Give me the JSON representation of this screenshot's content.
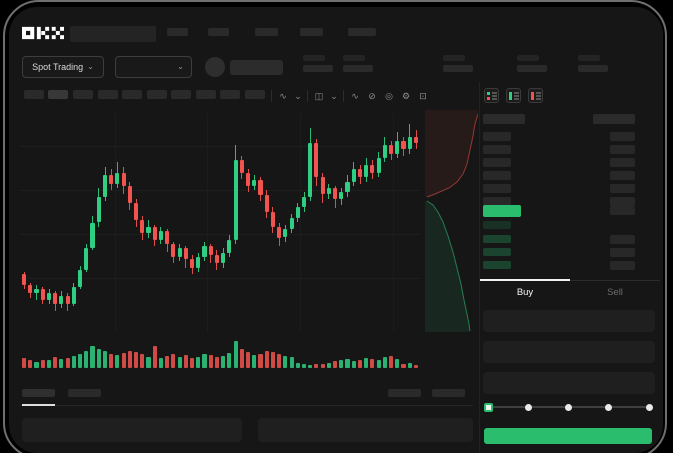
{
  "app": {
    "name": "OKX trading terminal (skeleton state)"
  },
  "colors": {
    "background": "#161616",
    "candle_up": "#2fce82",
    "candle_down": "#f1544f",
    "accent_green": "#2abd6e",
    "tab_active_underline": "#f2f2f2"
  },
  "header": {
    "logo": "OKX",
    "market_selector": {
      "label": "Spot Trading",
      "chevron": "⌄"
    },
    "pair_selector": {
      "chevron": "⌄"
    }
  },
  "chart_toolbar": {
    "icons": [
      {
        "name": "indicators",
        "glyph": "∿"
      },
      {
        "name": "indicators-caret",
        "glyph": "⌄"
      },
      {
        "name": "candle-style",
        "glyph": "◫"
      },
      {
        "name": "candle-style-caret",
        "glyph": "⌄"
      },
      {
        "name": "line-tool",
        "glyph": "∿"
      },
      {
        "name": "compare",
        "glyph": "⊘"
      },
      {
        "name": "screenshot",
        "glyph": "◎"
      },
      {
        "name": "settings",
        "glyph": "⚙"
      },
      {
        "name": "fullscreen",
        "glyph": "⊡"
      }
    ]
  },
  "order_book": {
    "tabs": {
      "buy": "Buy",
      "sell": "Sell"
    },
    "active_tab": "Buy",
    "slider_stops": [
      0,
      25,
      50,
      75,
      100
    ],
    "slider_value": 0
  },
  "chart_data": [
    {
      "type": "candlestick",
      "title": "",
      "xlabel": "",
      "ylabel": "",
      "note": "No axis tick labels are rendered in the UI (skeleton screen); values are normalized 0-100 price units read from candle pixel positions.",
      "ylim": [
        0,
        100
      ],
      "colors": {
        "up": "#2fce82",
        "down": "#f1544f"
      },
      "candles_format": [
        "open",
        "close",
        "low",
        "high"
      ],
      "candles": [
        [
          26,
          21,
          19,
          27
        ],
        [
          21,
          17,
          15,
          22
        ],
        [
          17,
          19,
          14,
          21
        ],
        [
          19,
          14,
          12,
          20
        ],
        [
          14,
          17,
          12,
          19
        ],
        [
          17,
          12,
          9,
          18
        ],
        [
          12,
          16,
          10,
          18
        ],
        [
          16,
          12,
          9,
          17
        ],
        [
          12,
          20,
          11,
          22
        ],
        [
          20,
          28,
          19,
          30
        ],
        [
          28,
          38,
          27,
          40
        ],
        [
          38,
          50,
          37,
          53
        ],
        [
          50,
          62,
          48,
          66
        ],
        [
          62,
          72,
          60,
          76
        ],
        [
          72,
          68,
          65,
          75
        ],
        [
          68,
          73,
          66,
          78
        ],
        [
          73,
          67,
          63,
          76
        ],
        [
          67,
          59,
          56,
          69
        ],
        [
          59,
          51,
          48,
          61
        ],
        [
          51,
          45,
          42,
          53
        ],
        [
          45,
          48,
          43,
          51
        ],
        [
          48,
          42,
          39,
          49
        ],
        [
          42,
          46,
          40,
          48
        ],
        [
          46,
          40,
          36,
          47
        ],
        [
          40,
          34,
          31,
          41
        ],
        [
          34,
          38,
          32,
          40
        ],
        [
          38,
          33,
          29,
          39
        ],
        [
          33,
          29,
          26,
          35
        ],
        [
          29,
          34,
          27,
          36
        ],
        [
          34,
          39,
          32,
          41
        ],
        [
          39,
          35,
          31,
          40
        ],
        [
          35,
          31,
          28,
          37
        ],
        [
          31,
          36,
          29,
          38
        ],
        [
          36,
          42,
          34,
          44
        ],
        [
          42,
          79,
          40,
          86
        ],
        [
          79,
          73,
          70,
          81
        ],
        [
          73,
          67,
          64,
          75
        ],
        [
          67,
          70,
          65,
          72
        ],
        [
          70,
          63,
          60,
          71
        ],
        [
          63,
          55,
          52,
          65
        ],
        [
          55,
          48,
          45,
          57
        ],
        [
          48,
          43,
          39,
          50
        ],
        [
          43,
          47,
          41,
          49
        ],
        [
          47,
          52,
          45,
          54
        ],
        [
          52,
          57,
          50,
          59
        ],
        [
          57,
          62,
          55,
          64
        ],
        [
          62,
          87,
          60,
          94
        ],
        [
          87,
          71,
          67,
          89
        ],
        [
          71,
          63,
          59,
          73
        ],
        [
          63,
          66,
          61,
          68
        ],
        [
          66,
          61,
          57,
          67
        ],
        [
          61,
          64,
          58,
          66
        ],
        [
          64,
          69,
          62,
          72
        ],
        [
          69,
          75,
          67,
          78
        ],
        [
          75,
          71,
          68,
          77
        ],
        [
          71,
          77,
          69,
          80
        ],
        [
          77,
          73,
          70,
          79
        ],
        [
          73,
          80,
          71,
          83
        ],
        [
          80,
          86,
          78,
          90
        ],
        [
          86,
          82,
          79,
          88
        ],
        [
          82,
          88,
          80,
          92
        ],
        [
          88,
          84,
          81,
          90
        ],
        [
          84,
          90,
          82,
          96
        ],
        [
          90,
          87,
          84,
          93
        ]
      ]
    },
    {
      "type": "bar",
      "name": "volume",
      "note": "Volume bars under the candles; color follows candle direction. Normalized 0-100.",
      "values": [
        34,
        26,
        20,
        28,
        28,
        38,
        30,
        34,
        40,
        46,
        58,
        72,
        64,
        58,
        46,
        42,
        50,
        58,
        52,
        46,
        38,
        75,
        34,
        40,
        48,
        36,
        44,
        32,
        38,
        46,
        42,
        36,
        40,
        50,
        90,
        62,
        54,
        42,
        48,
        58,
        52,
        46,
        40,
        36,
        16,
        12,
        10,
        14,
        12,
        16,
        22,
        26,
        30,
        24,
        28,
        34,
        30,
        26,
        36,
        40,
        30,
        12,
        16,
        10
      ]
    },
    {
      "type": "area",
      "name": "order-depth",
      "note": "Vertical market-depth strip right of the candles: asks (red) above, bids (green) below. Points in local px (53x222).",
      "asks_curve": [
        [
          53,
          4
        ],
        [
          50,
          14
        ],
        [
          48,
          26
        ],
        [
          45,
          40
        ],
        [
          42,
          54
        ],
        [
          38,
          64
        ],
        [
          32,
          72
        ],
        [
          24,
          78
        ],
        [
          10,
          84
        ],
        [
          2,
          87
        ]
      ],
      "bids_curve": [
        [
          2,
          91
        ],
        [
          8,
          95
        ],
        [
          13,
          102
        ],
        [
          18,
          112
        ],
        [
          23,
          126
        ],
        [
          28,
          142
        ],
        [
          32,
          158
        ],
        [
          36,
          174
        ],
        [
          39,
          190
        ],
        [
          42,
          204
        ],
        [
          44,
          214
        ],
        [
          45,
          221
        ]
      ],
      "asks_color": "#f1544f",
      "bids_color": "#2fce82"
    }
  ]
}
